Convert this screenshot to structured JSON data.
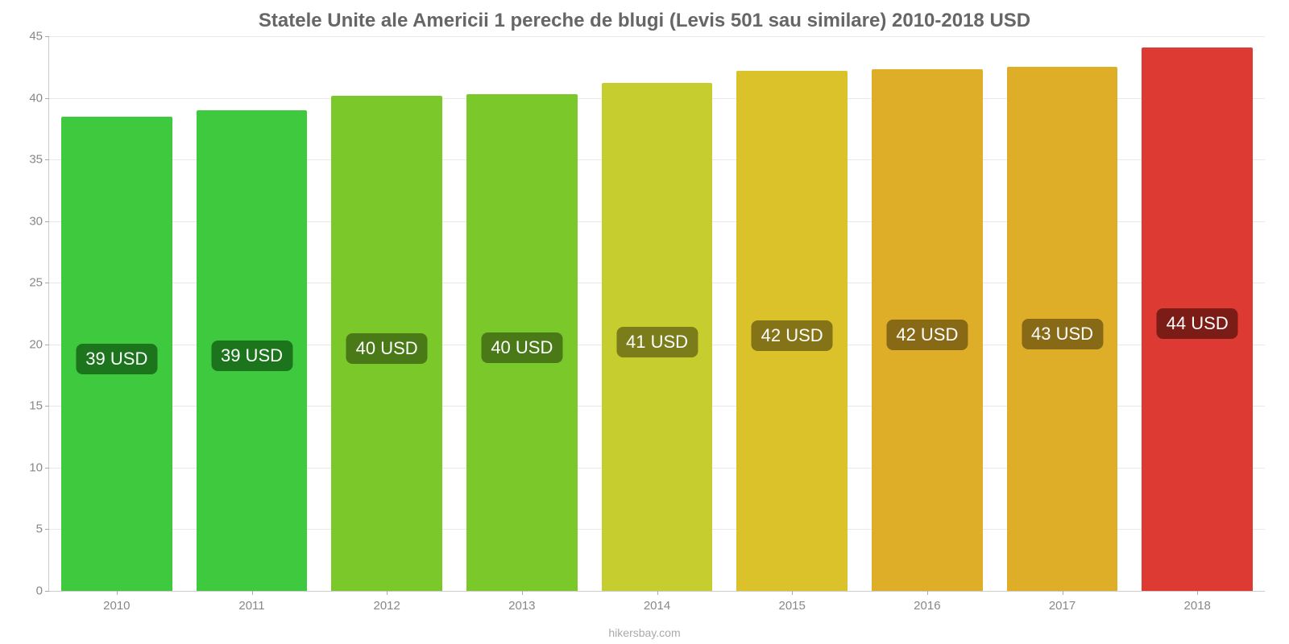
{
  "chart": {
    "type": "bar",
    "title": "Statele Unite ale Americii 1 pereche de blugi (Levis 501 sau similare) 2010-2018 USD",
    "title_fontsize": 24,
    "title_color": "#666666",
    "source": "hikersbay.com",
    "background_color": "#ffffff",
    "grid_color": "#e8e8e8",
    "axis_color": "#cccccc",
    "tick_label_color": "#888888",
    "tick_label_fontsize": 15,
    "ylim": [
      0,
      45
    ],
    "ytick_step": 5,
    "yticks": [
      0,
      5,
      10,
      15,
      20,
      25,
      30,
      35,
      40,
      45
    ],
    "bar_width_pct": 82,
    "value_badge_fontsize": 22,
    "value_badge_text_color": "#ffffff",
    "value_badge_top_pct": 48,
    "categories": [
      "2010",
      "2011",
      "2012",
      "2013",
      "2014",
      "2015",
      "2016",
      "2017",
      "2018"
    ],
    "values": [
      38.5,
      39.0,
      40.2,
      40.3,
      41.2,
      42.2,
      42.3,
      42.5,
      44.1
    ],
    "value_labels": [
      "39 USD",
      "39 USD",
      "40 USD",
      "40 USD",
      "41 USD",
      "42 USD",
      "42 USD",
      "43 USD",
      "44 USD"
    ],
    "bar_colors": [
      "#3ec93e",
      "#3ec93e",
      "#7ac82a",
      "#7ac82a",
      "#c6ce2f",
      "#dcc22a",
      "#dfae29",
      "#dfae29",
      "#dc3a33"
    ],
    "badge_bg_colors": [
      "#1c751c",
      "#1c751c",
      "#4a7a17",
      "#4a7a17",
      "#7a7d1a",
      "#857417",
      "#876916",
      "#876916",
      "#7c1c17"
    ]
  }
}
